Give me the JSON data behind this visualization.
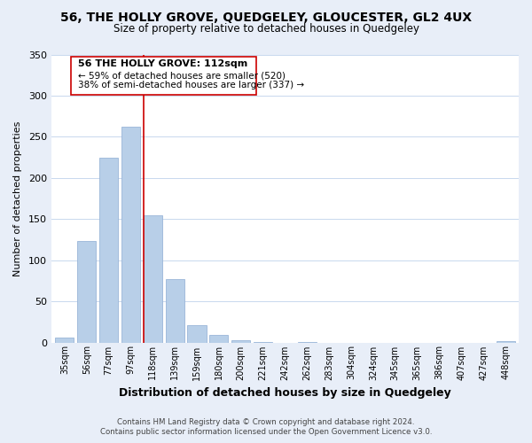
{
  "title": "56, THE HOLLY GROVE, QUEDGELEY, GLOUCESTER, GL2 4UX",
  "subtitle": "Size of property relative to detached houses in Quedgeley",
  "xlabel": "Distribution of detached houses by size in Quedgeley",
  "ylabel": "Number of detached properties",
  "bar_labels": [
    "35sqm",
    "56sqm",
    "77sqm",
    "97sqm",
    "118sqm",
    "139sqm",
    "159sqm",
    "180sqm",
    "200sqm",
    "221sqm",
    "242sqm",
    "262sqm",
    "283sqm",
    "304sqm",
    "324sqm",
    "345sqm",
    "365sqm",
    "386sqm",
    "407sqm",
    "427sqm",
    "448sqm"
  ],
  "bar_heights": [
    6,
    123,
    225,
    262,
    155,
    77,
    21,
    9,
    3,
    1,
    0,
    1,
    0,
    0,
    0,
    0,
    0,
    0,
    0,
    0,
    2
  ],
  "bar_color": "#b8cfe8",
  "bar_edge_color": "#9ab5d8",
  "marker_bar_index": 4,
  "marker_color": "#cc0000",
  "ylim": [
    0,
    350
  ],
  "yticks": [
    0,
    50,
    100,
    150,
    200,
    250,
    300,
    350
  ],
  "annotation_title": "56 THE HOLLY GROVE: 112sqm",
  "annotation_line1": "← 59% of detached houses are smaller (520)",
  "annotation_line2": "38% of semi-detached houses are larger (337) →",
  "footer_line1": "Contains HM Land Registry data © Crown copyright and database right 2024.",
  "footer_line2": "Contains public sector information licensed under the Open Government Licence v3.0.",
  "bg_color": "#e8eef8",
  "plot_bg_color": "#ffffff",
  "grid_color": "#c8d8ee"
}
